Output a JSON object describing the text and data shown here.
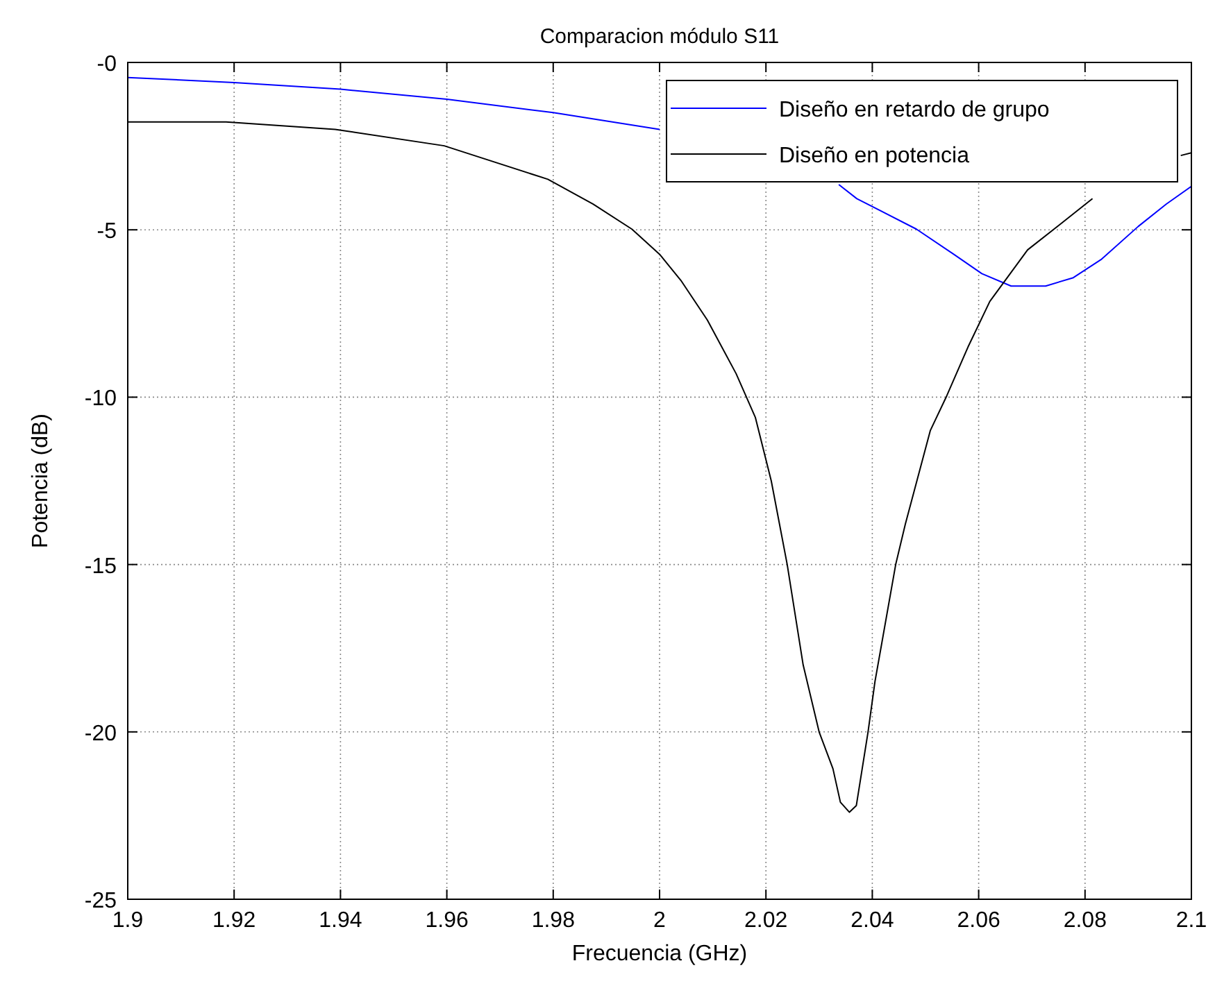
{
  "chart_data": {
    "type": "line",
    "title": "Comparacion módulo S11",
    "xlabel": "Frecuencia (GHz)",
    "ylabel": "Potencia (dB)",
    "xlim": [
      1.9,
      2.1
    ],
    "ylim": [
      -25,
      0
    ],
    "xticks": [
      1.9,
      1.92,
      1.94,
      1.96,
      1.98,
      2,
      2.02,
      2.04,
      2.06,
      2.08,
      2.1
    ],
    "yticks": [
      -25,
      -20,
      -15,
      -10,
      -5,
      {
        "value": 0,
        "label": "-0"
      }
    ],
    "grid": true,
    "legend": "top right",
    "line_style": "solid",
    "marker": "none",
    "series": [
      {
        "name": "Diseño en retardo de grupo",
        "color": "#0000ff",
        "x": [
          1.9,
          1.92,
          1.94,
          1.96,
          1.98,
          2.0,
          2.01,
          2.0337,
          2.0371,
          2.0483,
          2.0553,
          2.0606,
          2.0661,
          2.0726,
          2.0778,
          2.083,
          2.09,
          2.0953,
          2.1
        ],
        "values": [
          -0.45,
          -0.6,
          -0.8,
          -1.1,
          -1.5,
          -2.0,
          null,
          -3.65,
          -4.07,
          -4.98,
          -5.73,
          -6.31,
          -6.68,
          -6.68,
          -6.43,
          -5.89,
          -4.9,
          -4.23,
          -3.7
        ]
      },
      {
        "name": "Diseño en potencia",
        "color": "#000000",
        "x": [
          1.9,
          1.9185,
          1.939,
          1.9595,
          1.979,
          1.9875,
          1.9948,
          2.0,
          2.004,
          2.009,
          2.0144,
          2.018,
          2.021,
          2.024,
          2.027,
          2.03,
          2.0326,
          2.034,
          2.0357,
          2.037,
          2.0392,
          2.0405,
          2.0444,
          2.0462,
          2.0509,
          2.054,
          2.058,
          2.0621,
          2.0692,
          2.0752,
          2.0814,
          2.09,
          2.098,
          2.1
        ],
        "values": [
          -1.78,
          -1.78,
          -2.0,
          -2.49,
          -3.49,
          -4.23,
          -4.98,
          -5.73,
          -6.51,
          -7.7,
          -9.3,
          -10.6,
          -12.5,
          -15.0,
          -18.0,
          -20.0,
          -21.1,
          -22.1,
          -22.4,
          -22.2,
          -20.0,
          -18.5,
          -15.0,
          -13.8,
          -11.0,
          -9.96,
          -8.5,
          -7.14,
          -5.6,
          -4.85,
          -4.07,
          null,
          -2.78,
          -2.7
        ]
      }
    ]
  }
}
